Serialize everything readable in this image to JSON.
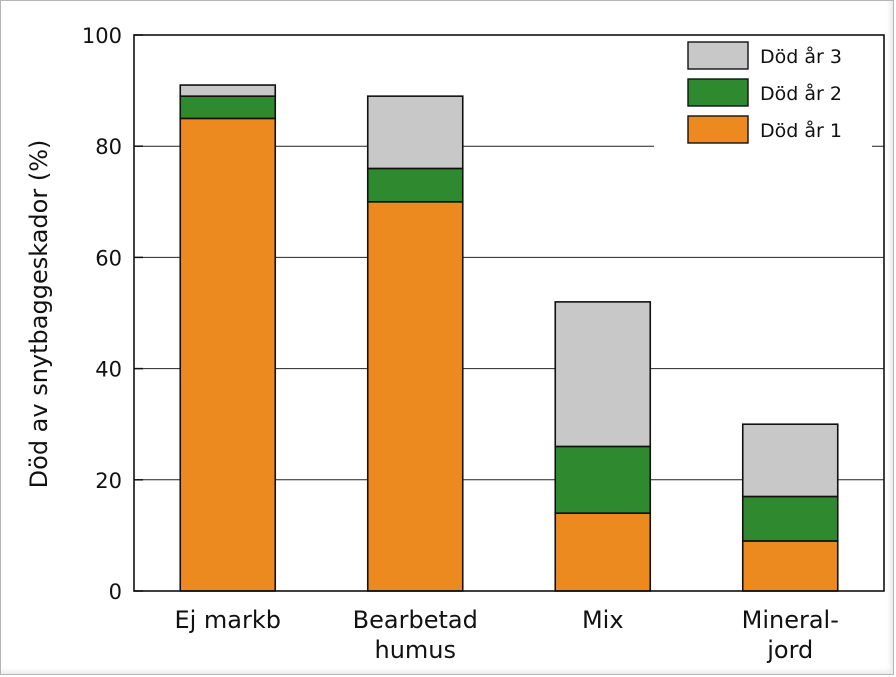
{
  "chart_data": {
    "type": "bar",
    "stacked": true,
    "ylabel": "Död av snytbaggeskador (%)",
    "xlabel": "",
    "ylim": [
      0,
      100
    ],
    "yticks": [
      0,
      20,
      40,
      60,
      80,
      100
    ],
    "grid": "horizontal",
    "legend_position": "top-right",
    "categories": [
      [
        "Ej markb"
      ],
      [
        "Bearbetad",
        "humus"
      ],
      [
        "Mix"
      ],
      [
        "Mineral-",
        "jord"
      ]
    ],
    "series": [
      {
        "name": "Död år 1",
        "color": "#ec8a20",
        "values": [
          85,
          70,
          14,
          9
        ]
      },
      {
        "name": "Död år 2",
        "color": "#2f8a2f",
        "values": [
          4,
          6,
          12,
          8
        ]
      },
      {
        "name": "Död år 3",
        "color": "#c8c8c8",
        "values": [
          2,
          13,
          26,
          13
        ]
      }
    ],
    "legend_order": [
      2,
      1,
      0
    ]
  }
}
